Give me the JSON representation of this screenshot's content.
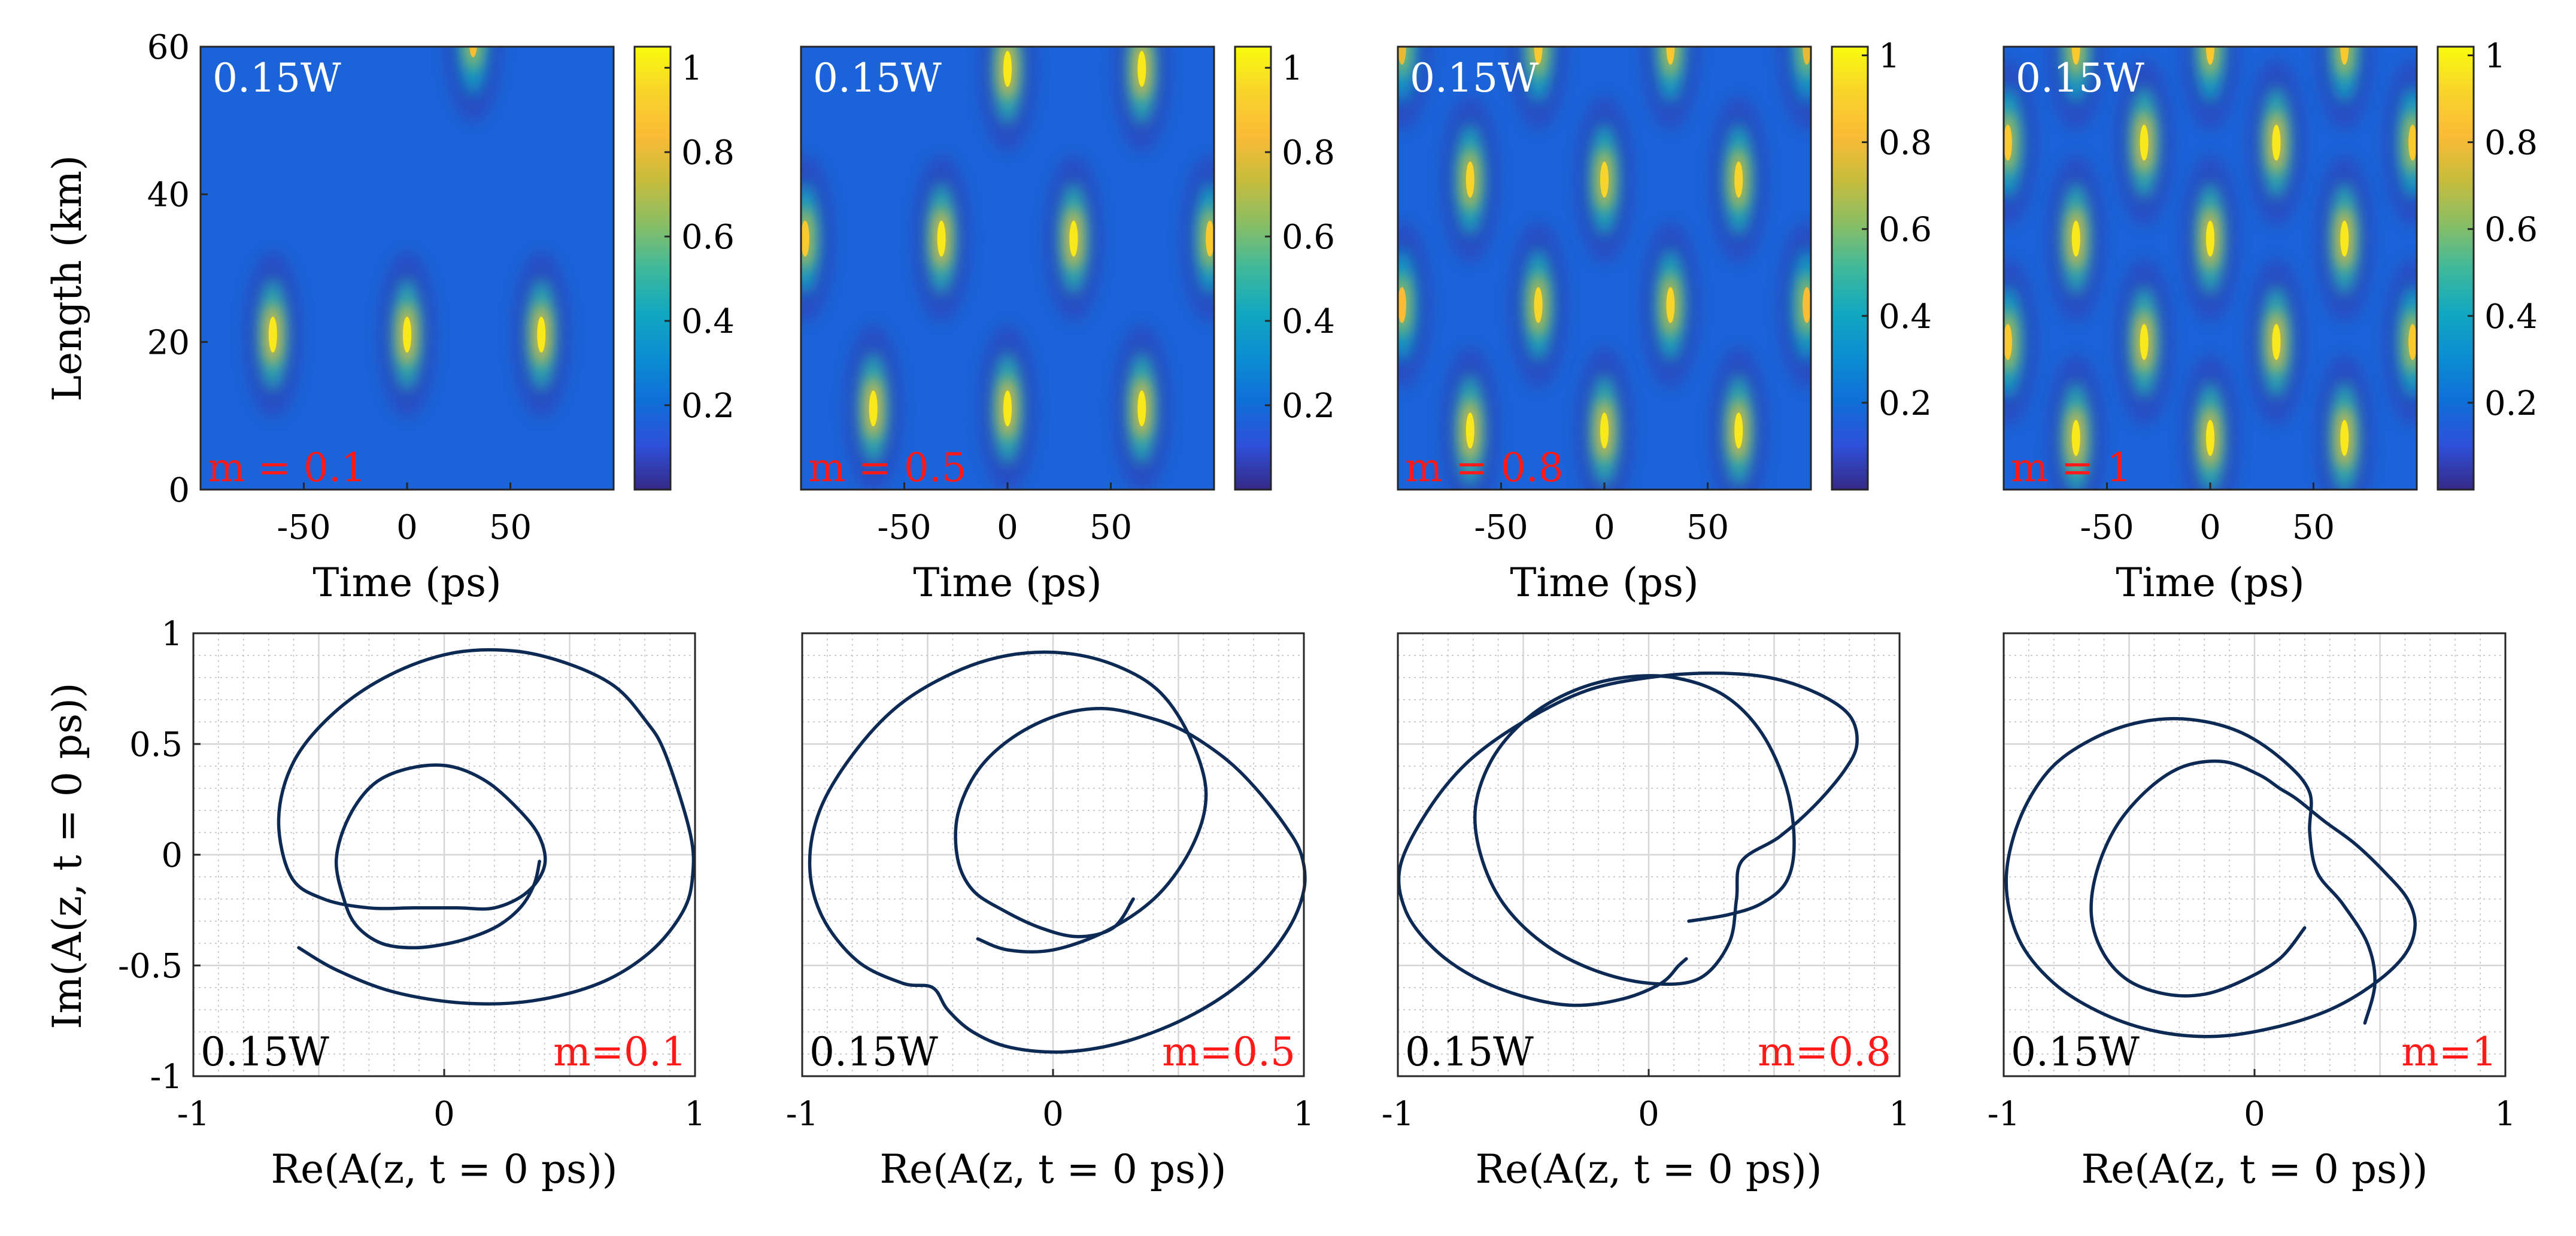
{
  "figure": {
    "heatmap_xlabel": "Time (ps)",
    "heatmap_ylabel": "Length (km)",
    "phase_xlabel": "Re(A(z, t = 0 ps))",
    "phase_ylabel": "Im(A(z, t = 0 ps))"
  },
  "colors": {
    "parula_stops": [
      "#352a87",
      "#2e50d9",
      "#0f6fd8",
      "#0c8ed2",
      "#12a8c0",
      "#3fb99a",
      "#8abe65",
      "#c8bc3c",
      "#fbbb36",
      "#f8d52a",
      "#f9fb0e"
    ],
    "curve": "#0d2a55",
    "label_red": "#ff1a1a"
  },
  "chart_data": [
    {
      "type": "heatmap",
      "power_label": "0.15W",
      "m_label": "m = 0.1",
      "xlim": [
        -100,
        100
      ],
      "ylim": [
        0,
        60
      ],
      "xticks": [
        -50,
        0,
        50
      ],
      "xtick_labels": [
        "-50",
        "0",
        "50"
      ],
      "yticks": [
        0,
        20,
        40,
        60
      ],
      "ytick_labels": [
        "0",
        "20",
        "40",
        "60"
      ],
      "clim": [
        0,
        1.05
      ],
      "cticks": [
        0.2,
        0.4,
        0.6,
        0.8,
        1
      ],
      "ctick_labels": [
        "0.2",
        "0.4",
        "0.6",
        "0.8",
        "1"
      ],
      "peaks": [
        {
          "t": -65,
          "z": 21,
          "v": 1.0
        },
        {
          "t": 0,
          "z": 21,
          "v": 1.0
        },
        {
          "t": 65,
          "z": 21,
          "v": 1.0
        },
        {
          "t": 32,
          "z": 61,
          "v": 0.85
        }
      ]
    },
    {
      "type": "heatmap",
      "power_label": "0.15W",
      "m_label": "m = 0.5",
      "xlim": [
        -100,
        100
      ],
      "ylim": [
        0,
        60
      ],
      "xticks": [
        -50,
        0,
        50
      ],
      "xtick_labels": [
        "-50",
        "0",
        "50"
      ],
      "clim": [
        0,
        1.05
      ],
      "cticks": [
        0.2,
        0.4,
        0.6,
        0.8,
        1
      ],
      "ctick_labels": [
        "0.2",
        "0.4",
        "0.6",
        "0.8",
        "1"
      ],
      "peaks": [
        {
          "t": -65,
          "z": 11,
          "v": 1.0
        },
        {
          "t": 0,
          "z": 11,
          "v": 1.0
        },
        {
          "t": 65,
          "z": 11,
          "v": 1.0
        },
        {
          "t": -32,
          "z": 34,
          "v": 1.0
        },
        {
          "t": 32,
          "z": 34,
          "v": 1.0
        },
        {
          "t": -98,
          "z": 34,
          "v": 0.9
        },
        {
          "t": 98,
          "z": 34,
          "v": 0.9
        },
        {
          "t": 0,
          "z": 57,
          "v": 1.0
        },
        {
          "t": 65,
          "z": 57,
          "v": 1.0
        }
      ]
    },
    {
      "type": "heatmap",
      "power_label": "0.15W",
      "m_label": "m = 0.8",
      "xlim": [
        -100,
        100
      ],
      "ylim": [
        0,
        60
      ],
      "xticks": [
        -50,
        0,
        50
      ],
      "xtick_labels": [
        "-50",
        "0",
        "50"
      ],
      "clim": [
        0,
        1.02
      ],
      "cticks": [
        0.2,
        0.4,
        0.6,
        0.8,
        1
      ],
      "ctick_labels": [
        "0.2",
        "0.4",
        "0.6",
        "0.8",
        "1"
      ],
      "peaks": [
        {
          "t": -65,
          "z": 8,
          "v": 1.0
        },
        {
          "t": 0,
          "z": 8,
          "v": 1.0
        },
        {
          "t": 65,
          "z": 8,
          "v": 1.0
        },
        {
          "t": -32,
          "z": 25,
          "v": 0.95
        },
        {
          "t": 32,
          "z": 25,
          "v": 0.95
        },
        {
          "t": -98,
          "z": 25,
          "v": 0.85
        },
        {
          "t": 98,
          "z": 25,
          "v": 0.85
        },
        {
          "t": -65,
          "z": 42,
          "v": 0.95
        },
        {
          "t": 0,
          "z": 42,
          "v": 0.95
        },
        {
          "t": 65,
          "z": 42,
          "v": 0.95
        },
        {
          "t": -32,
          "z": 60,
          "v": 0.9
        },
        {
          "t": 32,
          "z": 60,
          "v": 0.9
        },
        {
          "t": -98,
          "z": 60,
          "v": 0.8
        },
        {
          "t": 98,
          "z": 60,
          "v": 0.8
        }
      ]
    },
    {
      "type": "heatmap",
      "power_label": "0.15W",
      "m_label": "m = 1",
      "xlim": [
        -100,
        100
      ],
      "ylim": [
        0,
        60
      ],
      "xticks": [
        -50,
        0,
        50
      ],
      "xtick_labels": [
        "-50",
        "0",
        "50"
      ],
      "clim": [
        0,
        1.02
      ],
      "cticks": [
        0.2,
        0.4,
        0.6,
        0.8,
        1
      ],
      "ctick_labels": [
        "0.2",
        "0.4",
        "0.6",
        "0.8",
        "1"
      ],
      "peaks": [
        {
          "t": -65,
          "z": 7,
          "v": 1.0
        },
        {
          "t": 0,
          "z": 7,
          "v": 1.0
        },
        {
          "t": 65,
          "z": 7,
          "v": 1.0
        },
        {
          "t": -32,
          "z": 20,
          "v": 1.0
        },
        {
          "t": 32,
          "z": 20,
          "v": 1.0
        },
        {
          "t": -98,
          "z": 20,
          "v": 0.9
        },
        {
          "t": 98,
          "z": 20,
          "v": 0.9
        },
        {
          "t": -65,
          "z": 34,
          "v": 1.0
        },
        {
          "t": 0,
          "z": 34,
          "v": 1.0
        },
        {
          "t": 65,
          "z": 34,
          "v": 1.0
        },
        {
          "t": -32,
          "z": 47,
          "v": 1.0
        },
        {
          "t": 32,
          "z": 47,
          "v": 1.0
        },
        {
          "t": -98,
          "z": 47,
          "v": 0.9
        },
        {
          "t": 98,
          "z": 47,
          "v": 0.9
        },
        {
          "t": -65,
          "z": 60,
          "v": 0.9
        },
        {
          "t": 0,
          "z": 60,
          "v": 0.9
        },
        {
          "t": 65,
          "z": 60,
          "v": 0.9
        }
      ]
    },
    {
      "type": "line",
      "power_label": "0.15W",
      "m_label": "m=0.1",
      "xlim": [
        -1,
        1
      ],
      "ylim": [
        -1,
        1
      ],
      "xticks": [
        -1,
        0,
        1
      ],
      "xtick_labels": [
        "-1",
        "0",
        "1"
      ],
      "yticks": [
        -1,
        -0.5,
        0,
        0.5,
        1
      ],
      "ytick_labels": [
        "-1",
        "-0.5",
        "0",
        "0.5",
        "1"
      ],
      "series": [
        {
          "name": "trajectory",
          "x": [
            0.38,
            0.36,
            0.31,
            0.23,
            0.14,
            0.02,
            -0.12,
            -0.25,
            -0.35,
            -0.4,
            -0.43,
            -0.38,
            -0.28,
            -0.14,
            0.02,
            0.17,
            0.3,
            0.38,
            0.4,
            0.33,
            0.2,
            0.05,
            -0.12,
            -0.3,
            -0.48,
            -0.61,
            -0.66,
            -0.6,
            -0.44,
            -0.22,
            0.03,
            0.28,
            0.5,
            0.68,
            0.8,
            0.88,
            0.98,
            0.99,
            0.95,
            0.82,
            0.62,
            0.35,
            0.08,
            -0.2,
            -0.43,
            -0.58
          ],
          "y": [
            -0.03,
            -0.13,
            -0.23,
            -0.31,
            -0.36,
            -0.4,
            -0.42,
            -0.4,
            -0.32,
            -0.2,
            -0.02,
            0.17,
            0.32,
            0.39,
            0.4,
            0.33,
            0.2,
            0.08,
            -0.05,
            -0.17,
            -0.24,
            -0.24,
            -0.24,
            -0.24,
            -0.2,
            -0.1,
            0.16,
            0.42,
            0.64,
            0.81,
            0.91,
            0.92,
            0.86,
            0.76,
            0.61,
            0.46,
            0.1,
            -0.1,
            -0.26,
            -0.44,
            -0.58,
            -0.66,
            -0.67,
            -0.62,
            -0.52,
            -0.42
          ]
        }
      ]
    },
    {
      "type": "line",
      "power_label": "0.15W",
      "m_label": "m=0.5",
      "xlim": [
        -1,
        1
      ],
      "ylim": [
        -1,
        1
      ],
      "xticks": [
        -1,
        0,
        1
      ],
      "xtick_labels": [
        "-1",
        "0",
        "1"
      ],
      "series": [
        {
          "name": "trajectory",
          "x": [
            0.32,
            0.24,
            0.1,
            -0.05,
            -0.2,
            -0.32,
            -0.38,
            -0.38,
            -0.3,
            -0.16,
            0.02,
            0.2,
            0.38,
            0.52,
            0.68,
            0.8,
            0.92,
            0.99,
            1.0,
            0.93,
            0.78,
            0.56,
            0.3,
            0.05,
            -0.17,
            -0.32,
            -0.42,
            -0.48,
            -0.6,
            -0.78,
            -0.92,
            -0.97,
            -0.93,
            -0.8,
            -0.62,
            -0.4,
            -0.18,
            0.05,
            0.26,
            0.43,
            0.55,
            0.61,
            0.56,
            0.42,
            0.22,
            0.0,
            -0.18,
            -0.3
          ],
          "y": [
            -0.2,
            -0.33,
            -0.37,
            -0.33,
            -0.25,
            -0.16,
            -0.02,
            0.18,
            0.38,
            0.53,
            0.63,
            0.66,
            0.62,
            0.56,
            0.44,
            0.31,
            0.14,
            0.0,
            -0.16,
            -0.35,
            -0.55,
            -0.72,
            -0.84,
            -0.89,
            -0.87,
            -0.8,
            -0.7,
            -0.6,
            -0.58,
            -0.48,
            -0.28,
            -0.05,
            0.2,
            0.45,
            0.67,
            0.82,
            0.9,
            0.91,
            0.85,
            0.73,
            0.52,
            0.28,
            0.05,
            -0.18,
            -0.34,
            -0.43,
            -0.43,
            -0.38
          ]
        }
      ]
    },
    {
      "type": "line",
      "power_label": "0.15W",
      "m_label": "m=0.8",
      "xlim": [
        -1,
        1
      ],
      "ylim": [
        -1,
        1
      ],
      "xticks": [
        -1,
        0,
        1
      ],
      "xtick_labels": [
        "-1",
        "0",
        "1"
      ],
      "series": [
        {
          "name": "trajectory",
          "x": [
            0.16,
            0.32,
            0.45,
            0.55,
            0.58,
            0.55,
            0.45,
            0.3,
            0.1,
            -0.1,
            -0.3,
            -0.48,
            -0.62,
            -0.69,
            -0.67,
            -0.58,
            -0.42,
            -0.22,
            0.0,
            0.2,
            0.32,
            0.35,
            0.37,
            0.52,
            0.66,
            0.78,
            0.83,
            0.8,
            0.67,
            0.48,
            0.25,
            0.0,
            -0.25,
            -0.5,
            -0.72,
            -0.88,
            -0.99,
            -0.97,
            -0.86,
            -0.7,
            -0.5,
            -0.3,
            -0.1,
            0.05,
            0.12,
            0.15
          ],
          "y": [
            -0.3,
            -0.27,
            -0.22,
            -0.12,
            0.05,
            0.3,
            0.55,
            0.72,
            0.8,
            0.8,
            0.74,
            0.62,
            0.44,
            0.22,
            0.0,
            -0.22,
            -0.4,
            -0.52,
            -0.58,
            -0.56,
            -0.4,
            -0.2,
            -0.03,
            0.08,
            0.22,
            0.38,
            0.5,
            0.63,
            0.73,
            0.8,
            0.82,
            0.8,
            0.74,
            0.6,
            0.42,
            0.2,
            -0.05,
            -0.25,
            -0.42,
            -0.55,
            -0.64,
            -0.68,
            -0.65,
            -0.58,
            -0.5,
            -0.47
          ]
        }
      ]
    },
    {
      "type": "line",
      "power_label": "0.15W",
      "m_label": "m=1",
      "xlim": [
        -1,
        1
      ],
      "ylim": [
        -1,
        1
      ],
      "xticks": [
        -1,
        0,
        1
      ],
      "xtick_labels": [
        "-1",
        "0",
        "1"
      ],
      "series": [
        {
          "name": "trajectory",
          "x": [
            0.2,
            0.1,
            -0.05,
            -0.2,
            -0.35,
            -0.5,
            -0.6,
            -0.65,
            -0.63,
            -0.55,
            -0.42,
            -0.28,
            -0.12,
            0.02,
            0.1,
            0.17,
            0.28,
            0.4,
            0.52,
            0.61,
            0.64,
            0.6,
            0.48,
            0.3,
            0.08,
            -0.15,
            -0.38,
            -0.6,
            -0.8,
            -0.94,
            -0.99,
            -0.94,
            -0.82,
            -0.65,
            -0.45,
            -0.25,
            -0.05,
            0.12,
            0.22,
            0.22,
            0.25,
            0.35,
            0.45,
            0.48,
            0.44
          ],
          "y": [
            -0.33,
            -0.47,
            -0.57,
            -0.63,
            -0.63,
            -0.57,
            -0.45,
            -0.28,
            -0.08,
            0.13,
            0.3,
            0.4,
            0.42,
            0.36,
            0.3,
            0.25,
            0.15,
            0.05,
            -0.08,
            -0.2,
            -0.32,
            -0.45,
            -0.58,
            -0.7,
            -0.78,
            -0.82,
            -0.8,
            -0.72,
            -0.58,
            -0.38,
            -0.12,
            0.15,
            0.38,
            0.52,
            0.6,
            0.61,
            0.55,
            0.42,
            0.28,
            0.1,
            -0.08,
            -0.22,
            -0.4,
            -0.58,
            -0.76
          ]
        }
      ]
    }
  ]
}
